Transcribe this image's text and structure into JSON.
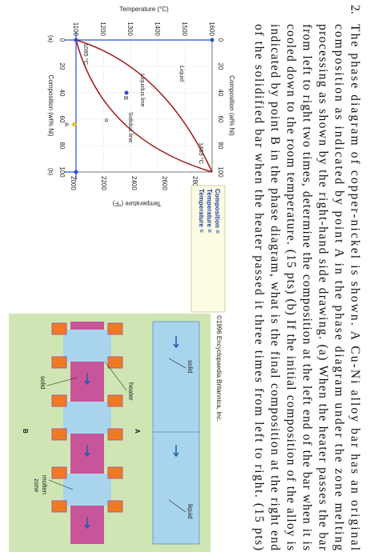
{
  "question": {
    "number": "2.",
    "lines": [
      "The phase diagram of copper-nickel is shown. A Cu-Ni alloy bar has an original",
      "composition as indicated by point A in the phase diagram under the zone melting",
      "processing as shown by the right-hand side drawing. (a) When the heater passes the bar",
      "from left to right two times, determine the composition at the left end of the bar when it is",
      "cooled down to the room temperature. (15 pts) (b) If the initial composition of the alloy is",
      "indicated by point B in the phase diagram, what is the final composition at the right end",
      "of the solidified bar when the heater passed it three times from left to right. (15 pts)"
    ]
  },
  "phase_diagram": {
    "top_axis_title": "Composition (at% Ni)",
    "top_ticks": [
      "0",
      "20",
      "40",
      "60",
      "80",
      "100"
    ],
    "left_axis_title": "Temperature (°C)",
    "left_ticks": [
      "1600",
      "1500",
      "1400",
      "1300",
      "1200",
      "1100"
    ],
    "right_axis_title": "Temperature (°F)",
    "right_ticks": [
      "2800",
      "2600",
      "2400",
      "2200",
      "2000"
    ],
    "bottom_axis_title": "Composition (wt% Ni)",
    "bottom_ticks": [
      "0",
      "20",
      "40",
      "60",
      "80",
      "100"
    ],
    "labels": {
      "liquid": "Liquid",
      "liquidus": "Liquidus line",
      "solidus": "Solidus line",
      "alpha": "α",
      "melt_ni": "1453 °C",
      "melt_cu": "1085 °C",
      "point_a": "A",
      "point_b": "B",
      "panel_a": "(a)",
      "panel_b": "(b)"
    }
  },
  "readout": [
    "Composition =",
    "Temperature =",
    "Temperature ="
  ],
  "zone_figure": {
    "copyright": "©1996 Encyclopaedia Britannica, Inc.",
    "solid_top": "solid",
    "liquid_top": "liquid",
    "label_a": "A",
    "heater": "heater",
    "solid_bottom": "solid",
    "molten": "molten",
    "zone": "zone",
    "label_b": "B"
  }
}
